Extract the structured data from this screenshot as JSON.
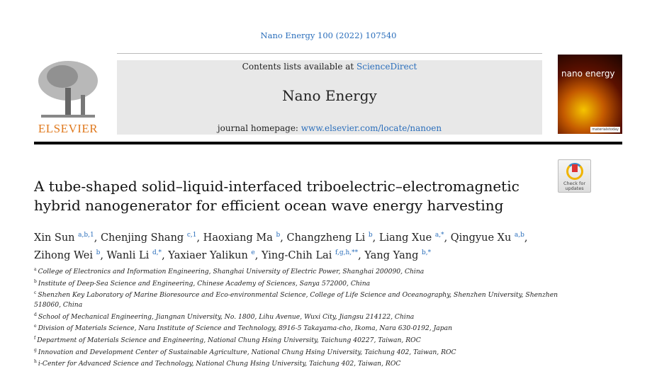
{
  "journal_ref": "Nano Energy 100 (2022) 107540",
  "header": {
    "contents_prefix": "Contents lists available at ",
    "contents_link": "ScienceDirect",
    "journal_name": "Nano Energy",
    "homepage_prefix": "journal homepage: ",
    "homepage_link": "www.elsevier.com/locate/nanoen"
  },
  "publisher_logo": "ELSEVIER",
  "cover": {
    "title": "nano energy",
    "badge": "materialstoday"
  },
  "check_updates": "Check for updates",
  "title": "A tube-shaped solid–liquid-interfaced triboelectric–electromagnetic hybrid nanogenerator for efficient ocean wave energy harvesting",
  "authors": [
    {
      "name": "Xin Sun",
      "sup": "a,b,1"
    },
    {
      "name": "Chenjing Shang",
      "sup": "c,1"
    },
    {
      "name": "Haoxiang Ma",
      "sup": "b"
    },
    {
      "name": "Changzheng Li",
      "sup": "b"
    },
    {
      "name": "Liang Xue",
      "sup": "a,*"
    },
    {
      "name": "Qingyue Xu",
      "sup": "a,b"
    },
    {
      "name": "Zihong Wei",
      "sup": "b"
    },
    {
      "name": "Wanli Li",
      "sup": "d,*"
    },
    {
      "name": "Yaxiaer Yalikun",
      "sup": "e"
    },
    {
      "name": "Ying-Chih Lai",
      "sup": "f,g,h,**"
    },
    {
      "name": "Yang Yang",
      "sup": "b,*"
    }
  ],
  "affiliations": [
    {
      "key": "a",
      "text": "College of Electronics and Information Engineering, Shanghai University of Electric Power, Shanghai 200090, China"
    },
    {
      "key": "b",
      "text": "Institute of Deep-Sea Science and Engineering, Chinese Academy of Sciences, Sanya 572000, China"
    },
    {
      "key": "c",
      "text": "Shenzhen Key Laboratory of Marine Bioresource and Eco-environmental Science, College of Life Science and Oceanography, Shenzhen University, Shenzhen 518060, China"
    },
    {
      "key": "d",
      "text": "School of Mechanical Engineering, Jiangnan University, No. 1800, Lihu Avenue, Wuxi City, Jiangsu 214122, China"
    },
    {
      "key": "e",
      "text": "Division of Materials Science, Nara Institute of Science and Technology, 8916-5 Takayama-cho, Ikoma, Nara 630-0192, Japan"
    },
    {
      "key": "f",
      "text": "Department of Materials Science and Engineering, National Chung Hsing University, Taichung 40227, Taiwan, ROC"
    },
    {
      "key": "g",
      "text": "Innovation and Development Center of Sustainable Agriculture, National Chung Hsing University, Taichung 402, Taiwan, ROC"
    },
    {
      "key": "h",
      "text": "i-Center for Advanced Science and Technology, National Chung Hsing University, Taichung 402, Taiwan, ROC"
    }
  ]
}
